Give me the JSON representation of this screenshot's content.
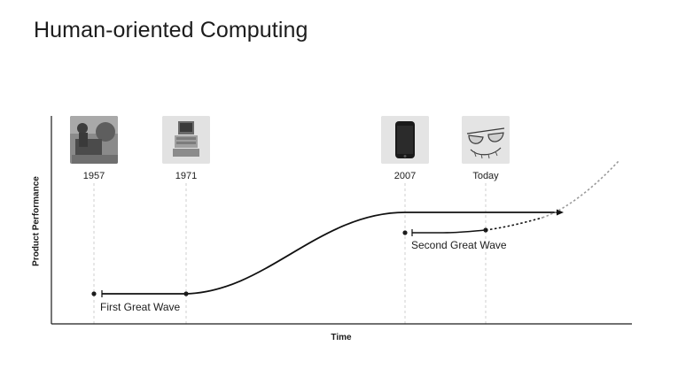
{
  "title": "Human-oriented Computing",
  "axes": {
    "y_label": "Product Performance",
    "x_label": "Time"
  },
  "milestones": [
    {
      "label": "1957",
      "icon": "early-computer-photo-icon"
    },
    {
      "label": "1971",
      "icon": "personal-computer-photo-icon"
    },
    {
      "label": "2007",
      "icon": "smartphone-photo-icon"
    },
    {
      "label": "Today",
      "icon": "smart-glasses-sketch-icon"
    }
  ],
  "waves": [
    {
      "label": "First Great Wave"
    },
    {
      "label": "Second Great Wave"
    }
  ]
}
